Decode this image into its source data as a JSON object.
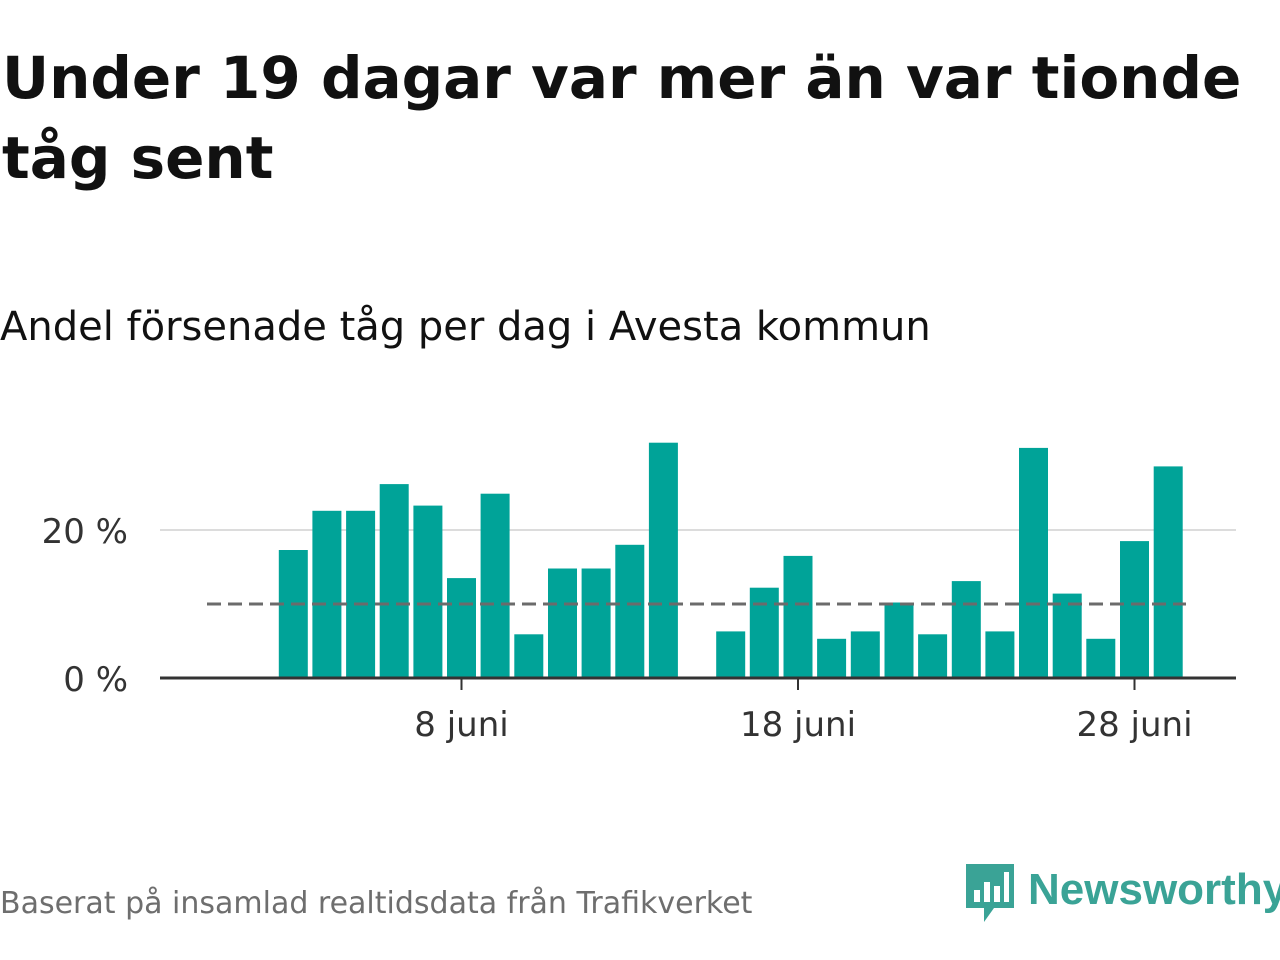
{
  "title": "Under 19 dagar var mer än var tionde tåg sent",
  "subtitle": "Andel försenade tåg per dag i Avesta kommun",
  "footer": "Baserat på insamlad realtidsdata från Trafikverket",
  "brand": {
    "name": "Newsworthy",
    "logo_icon": "newsworthy-logo-icon",
    "color": "#3aa396"
  },
  "colors": {
    "bar": "#00a398",
    "gridline": "#dcdcdc",
    "reference_line": "#6b6b6b",
    "axis": "#333333",
    "text": "#111111",
    "muted_text": "#6e6e6e"
  },
  "chart_data": {
    "type": "bar",
    "x_axis": "date",
    "tick_labels": [
      {
        "day": 8,
        "label": "8 juni"
      },
      {
        "day": 18,
        "label": "18 juni"
      },
      {
        "day": 28,
        "label": "28 juni"
      }
    ],
    "y_tick_labels": [
      {
        "value": 0,
        "label": "0 %"
      },
      {
        "value": 20,
        "label": "20 %"
      }
    ],
    "ylim": [
      0,
      33
    ],
    "unit": "%",
    "grid": true,
    "reference_line": {
      "value": 10,
      "style": "dashed"
    },
    "series": [
      {
        "days": [
          3,
          4,
          5,
          6,
          7,
          8,
          9,
          10,
          11,
          12,
          13,
          14,
          16,
          17,
          18,
          19,
          20,
          21,
          22,
          23,
          24,
          25,
          26,
          27,
          28,
          29
        ],
        "values": [
          17.3,
          22.6,
          22.6,
          26.2,
          23.3,
          13.5,
          24.9,
          5.9,
          14.8,
          14.8,
          18.0,
          31.8,
          6.3,
          12.2,
          16.5,
          5.3,
          6.3,
          10.2,
          5.9,
          13.1,
          6.3,
          31.1,
          11.4,
          5.3,
          18.5,
          28.6
        ]
      }
    ]
  }
}
